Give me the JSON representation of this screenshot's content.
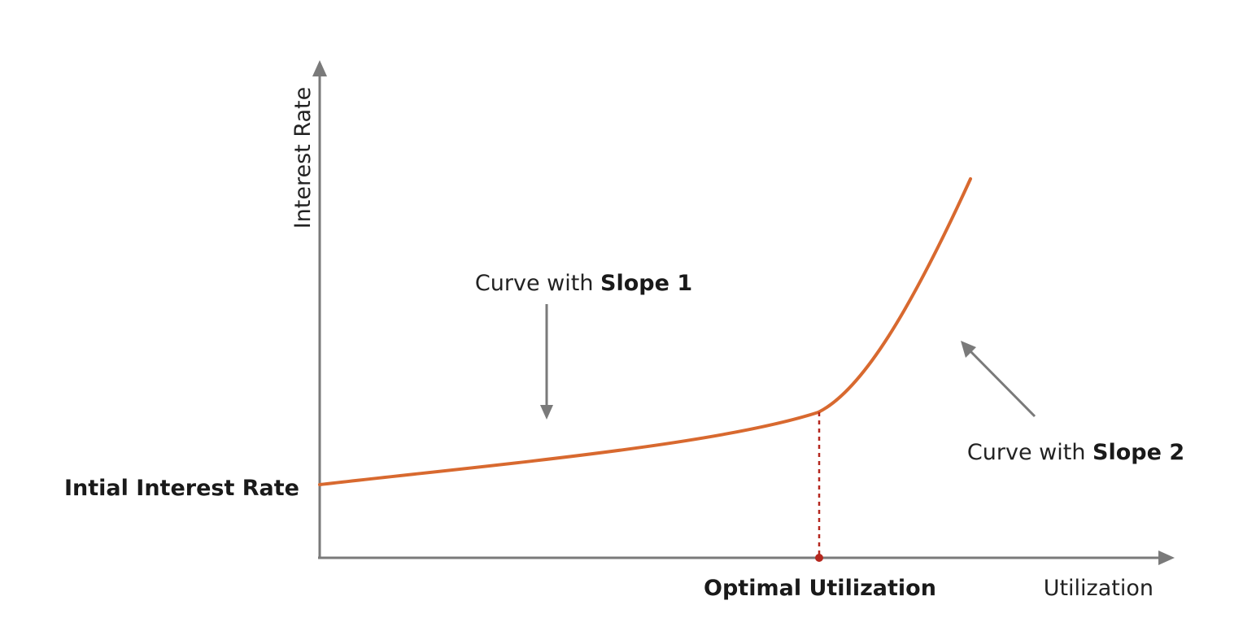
{
  "axes": {
    "x_label": "Utilization",
    "y_label": "Interest Rate"
  },
  "labels": {
    "initial_rate": "Intial Interest Rate",
    "optimal_utilization": "Optimal Utilization",
    "slope1_prefix": "Curve with ",
    "slope1_bold": "Slope 1",
    "slope2_prefix": "Curve with ",
    "slope2_bold": "Slope 2"
  },
  "colors": {
    "axis": "#7a7a7a",
    "curve": "#d8692f",
    "marker": "#b5271e",
    "arrow": "#7a7a7a",
    "text": "#1a1a1a"
  }
}
